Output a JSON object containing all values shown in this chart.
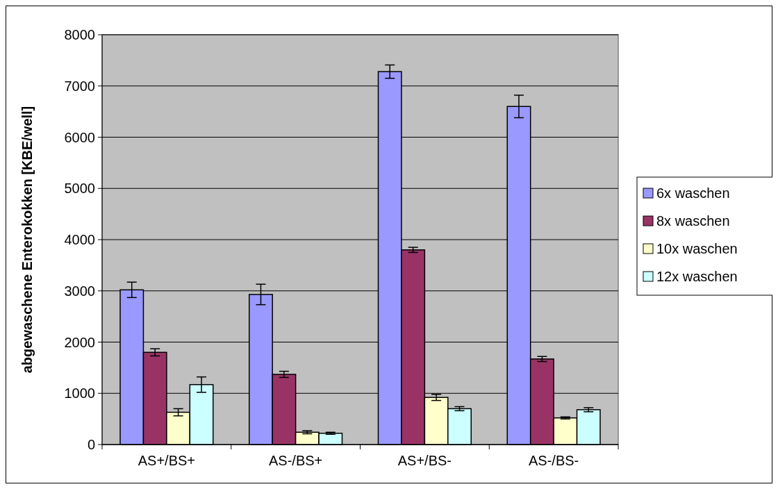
{
  "chart_data": {
    "type": "bar",
    "ylabel": "abgewaschene Enterokokken [KBE/well]",
    "categories": [
      "AS+/BS+",
      "AS-/BS+",
      "AS+/BS-",
      "AS-/BS-"
    ],
    "series": [
      {
        "name": "6x waschen",
        "color": "#9999ff",
        "values": [
          3020,
          2930,
          7280,
          6600
        ],
        "errors": [
          150,
          200,
          130,
          220
        ]
      },
      {
        "name": "8x waschen",
        "color": "#993366",
        "values": [
          1800,
          1370,
          3800,
          1670
        ],
        "errors": [
          70,
          60,
          50,
          50
        ]
      },
      {
        "name": "10x waschen",
        "color": "#ffffcc",
        "values": [
          630,
          240,
          920,
          520
        ],
        "errors": [
          70,
          30,
          60,
          20
        ]
      },
      {
        "name": "12x waschen",
        "color": "#ccffff",
        "values": [
          1170,
          220,
          700,
          680
        ],
        "errors": [
          150,
          20,
          40,
          40
        ]
      }
    ],
    "ylim": [
      0,
      8000
    ],
    "yticks": [
      0,
      1000,
      2000,
      3000,
      4000,
      5000,
      6000,
      7000,
      8000
    ],
    "grid": "y",
    "legend": "right"
  }
}
